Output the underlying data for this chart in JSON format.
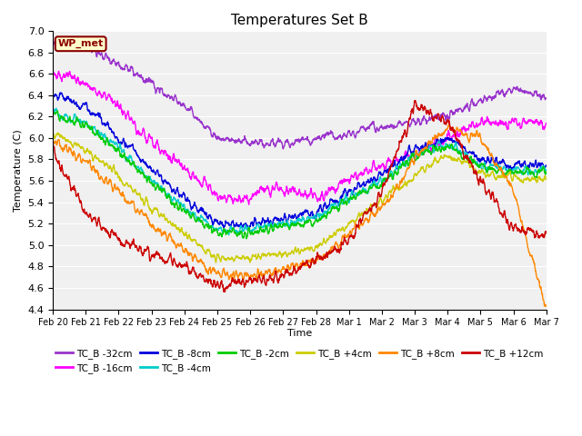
{
  "title": "Temperatures Set B",
  "xlabel": "Time",
  "ylabel": "Temperature (C)",
  "ylim": [
    4.4,
    7.0
  ],
  "annotation": "WP_met",
  "series_order": [
    "TC_B -32cm",
    "TC_B -16cm",
    "TC_B -8cm",
    "TC_B -4cm",
    "TC_B -2cm",
    "TC_B +4cm",
    "TC_B +8cm",
    "TC_B +12cm"
  ],
  "colors": {
    "TC_B -32cm": "#9933cc",
    "TC_B -16cm": "#ff00ff",
    "TC_B -8cm": "#0000dd",
    "TC_B -4cm": "#00cccc",
    "TC_B -2cm": "#00cc00",
    "TC_B +4cm": "#cccc00",
    "TC_B +8cm": "#ff8800",
    "TC_B +12cm": "#cc0000"
  },
  "xtick_labels": [
    "Feb 20",
    "Feb 21",
    "Feb 22",
    "Feb 23",
    "Feb 24",
    "Feb 25",
    "Feb 26",
    "Feb 27",
    "Feb 28",
    "Mar 1",
    "Mar 2",
    "Mar 3",
    "Mar 4",
    "Mar 5",
    "Mar 6",
    "Mar 7"
  ],
  "background_color": "#f0f0f0",
  "grid_color": "#ffffff",
  "lw": 1.0
}
